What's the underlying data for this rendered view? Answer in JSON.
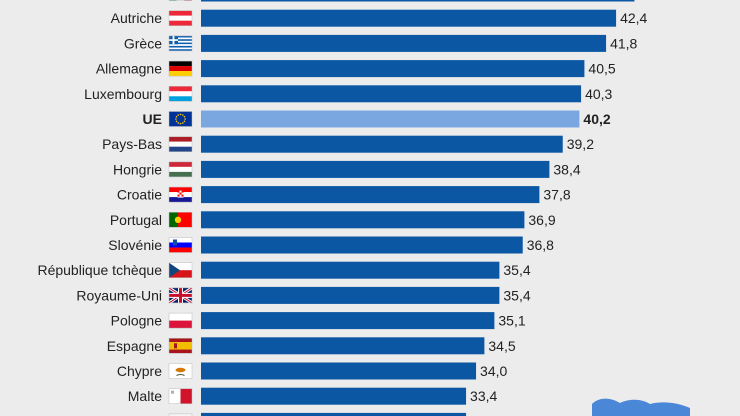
{
  "chart_data": {
    "type": "bar",
    "orientation": "horizontal",
    "title": "",
    "xlabel": "",
    "ylabel": "",
    "categories": [
      "",
      "Autriche",
      "Grèce",
      "Allemagne",
      "Luxembourg",
      "UE",
      "Pays-Bas",
      "Hongrie",
      "Croatie",
      "Portugal",
      "Slovénie",
      "République tchèque",
      "Royaume-Uni",
      "Pologne",
      "Espagne",
      "Chypre",
      "Malte",
      ""
    ],
    "values": [
      43.5,
      42.4,
      41.8,
      40.5,
      40.3,
      40.2,
      39.2,
      38.4,
      37.8,
      36.9,
      36.8,
      35.4,
      35.4,
      35.1,
      34.5,
      34.0,
      33.4,
      33.4
    ],
    "value_labels": [
      "",
      "42,4",
      "41,8",
      "40,5",
      "40,3",
      "40,2",
      "39,2",
      "38,4",
      "37,8",
      "36,9",
      "36,8",
      "35,4",
      "35,4",
      "35,1",
      "34,5",
      "34,0",
      "33,4",
      ""
    ],
    "highlight": "UE",
    "flags": [
      "italy",
      "austria",
      "greece",
      "germany",
      "luxembourg",
      "eu",
      "netherlands",
      "hungary",
      "croatia",
      "portugal",
      "slovenia",
      "czechia",
      "uk",
      "poland",
      "spain",
      "cyprus",
      "malta",
      "unknown"
    ],
    "colors": {
      "bar": "#0b57a4",
      "highlight": "#7ba7e0",
      "background": "#ececec",
      "text": "#222222"
    },
    "xlim": [
      17.5,
      45.5
    ],
    "grid": false
  }
}
